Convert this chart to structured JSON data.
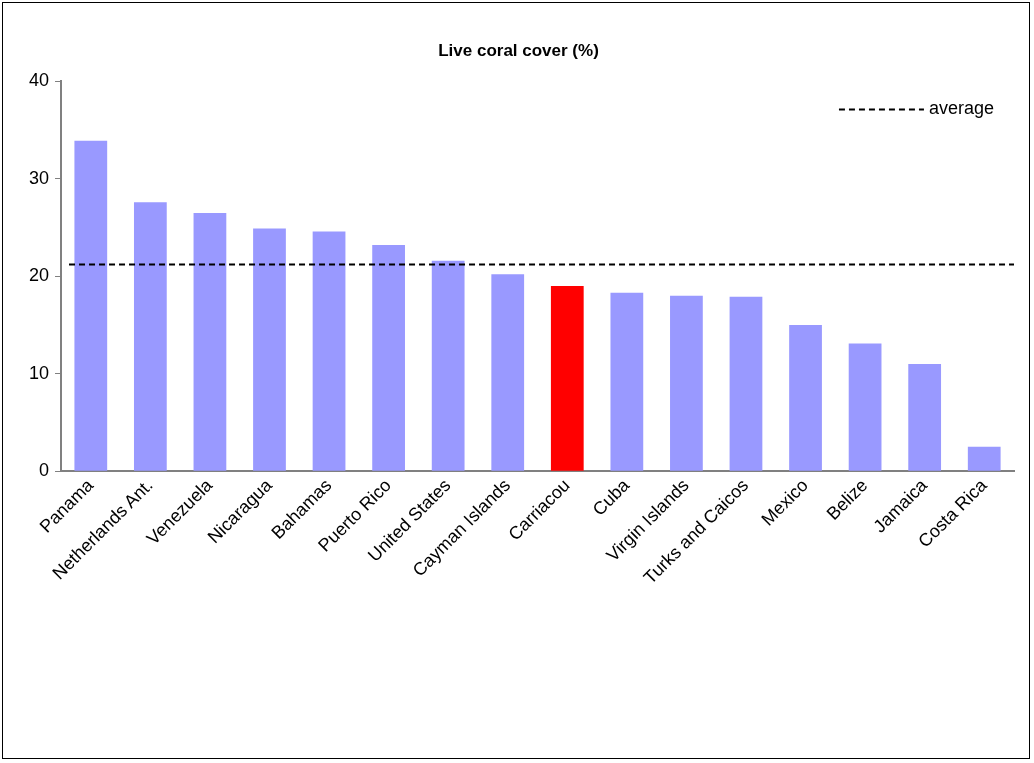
{
  "chart_data": {
    "type": "bar",
    "title": "Live coral cover (%)",
    "categories": [
      "Panama",
      "Netherlands Ant.",
      "Venezuela",
      "Nicaragua",
      "Bahamas",
      "Puerto Rico",
      "United States",
      "Cayman Islands",
      "Carriacou",
      "Cuba",
      "Virgin Islands",
      "Turks and Caicos",
      "Mexico",
      "Belize",
      "Jamaica",
      "Costa Rica"
    ],
    "values": [
      33.9,
      27.6,
      26.5,
      24.9,
      24.6,
      23.2,
      21.6,
      20.2,
      19.0,
      18.3,
      18.0,
      17.9,
      15.0,
      13.1,
      11.0,
      2.5
    ],
    "colors": [
      "#9999ff",
      "#9999ff",
      "#9999ff",
      "#9999ff",
      "#9999ff",
      "#9999ff",
      "#9999ff",
      "#9999ff",
      "#ff0000",
      "#9999ff",
      "#9999ff",
      "#9999ff",
      "#9999ff",
      "#9999ff",
      "#9999ff",
      "#9999ff"
    ],
    "ylim": [
      0,
      40
    ],
    "yticks": [
      0,
      10,
      20,
      30,
      40
    ],
    "grid": false,
    "legend": "top right",
    "ref_lines": [
      {
        "axis": "y",
        "value": 21.2,
        "label": "average",
        "color": "#000000",
        "line_style": "dashed"
      }
    ]
  }
}
